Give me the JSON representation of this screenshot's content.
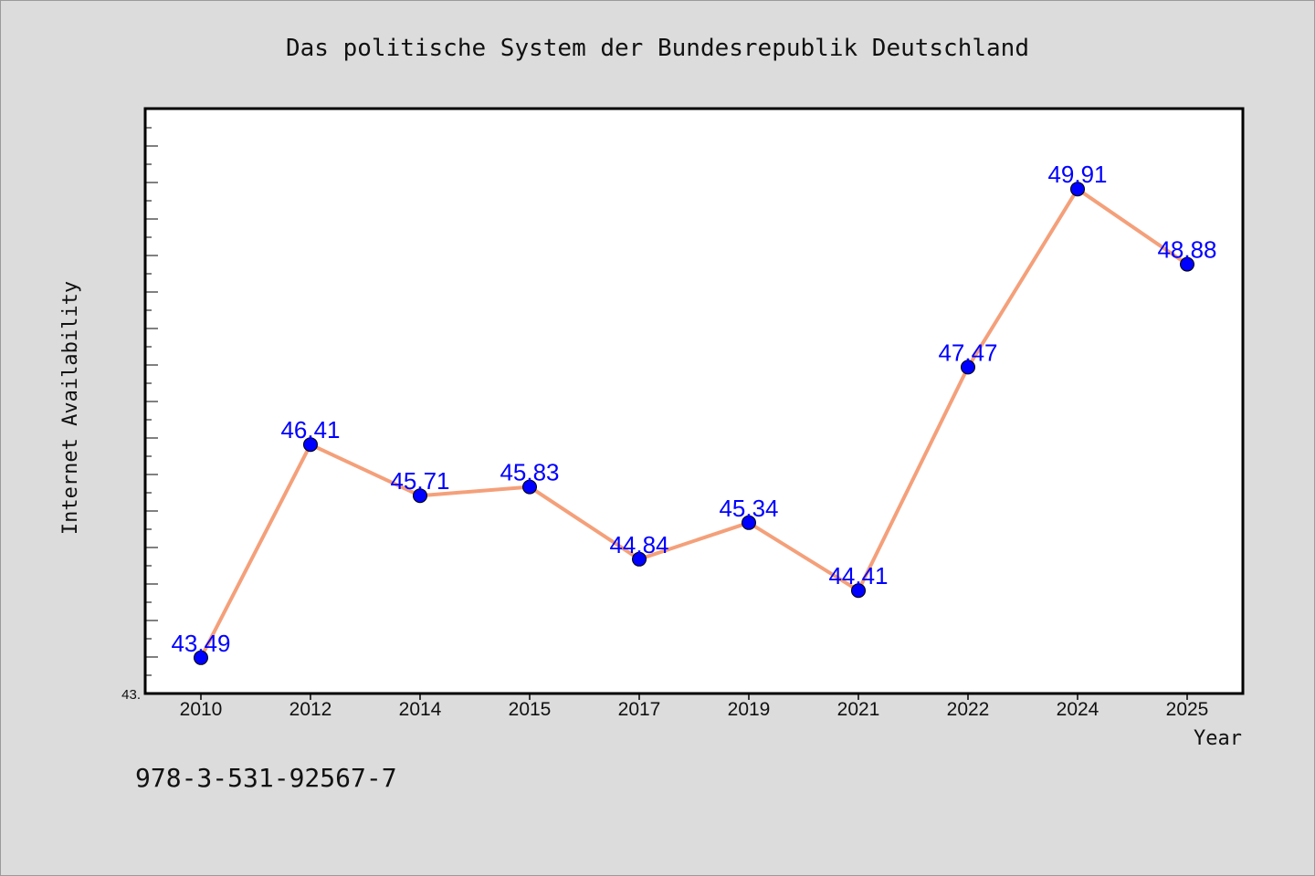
{
  "chart_data": {
    "type": "line",
    "title": "Das politische System der Bundesrepublik Deutschland",
    "xlabel": "Year",
    "ylabel": "Internet Availability",
    "categories": [
      "2010",
      "2012",
      "2014",
      "2015",
      "2017",
      "2019",
      "2021",
      "2022",
      "2024",
      "2025"
    ],
    "series": [
      {
        "values": [
          43.49,
          46.41,
          45.71,
          45.83,
          44.84,
          45.34,
          44.41,
          47.47,
          49.91,
          48.88
        ],
        "data_labels": [
          "43.49",
          "46.41",
          "45.71",
          "45.83",
          "44.84",
          "45.34",
          "44.41",
          "47.47",
          "49.91",
          "48.88"
        ],
        "line_color": "#f4a07a",
        "marker_color": "#0000ff"
      }
    ],
    "ylim": [
      43.0,
      51.0
    ],
    "y_tick_label": "43.",
    "grid": false,
    "legend": "none"
  },
  "footnote": "978-3-531-92567-7",
  "colors": {
    "background": "#dcdcdc",
    "plot_background": "#ffffff",
    "data_label": "#0000ff"
  }
}
